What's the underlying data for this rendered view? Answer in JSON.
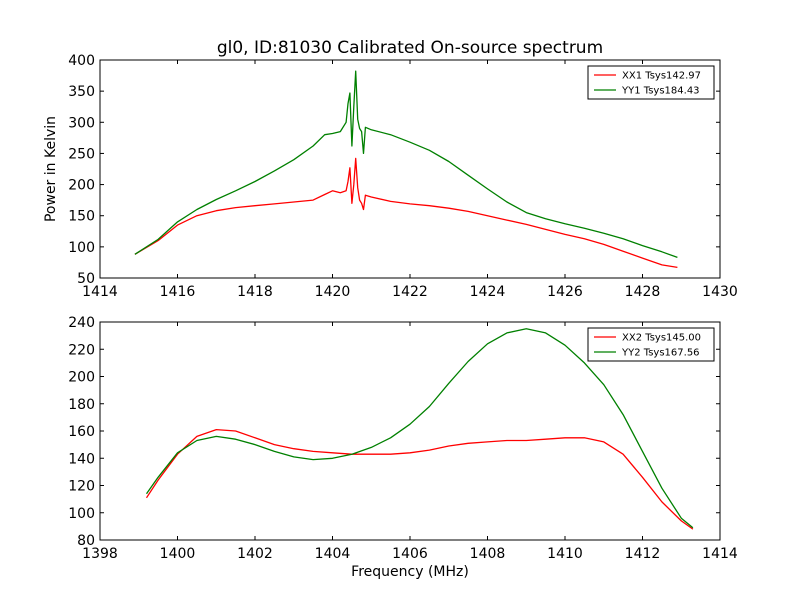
{
  "figure": {
    "title": "gl0, ID:81030 Calibrated On-source spectrum",
    "xlabel": "Frequency (MHz)",
    "ylabel_top": "Power in Kelvin"
  },
  "chart_data": [
    {
      "type": "line",
      "title": "gl0, ID:81030 Calibrated On-source spectrum",
      "xlabel": "",
      "ylabel": "Power in Kelvin",
      "xlim": [
        1414,
        1430
      ],
      "ylim": [
        50,
        400
      ],
      "xticks": [
        1414,
        1416,
        1418,
        1420,
        1422,
        1424,
        1426,
        1428,
        1430
      ],
      "yticks": [
        50,
        100,
        150,
        200,
        250,
        300,
        350,
        400
      ],
      "grid": false,
      "legend": "top-right",
      "series": [
        {
          "name": "XX1 Tsys142.97",
          "color": "#ff0000",
          "x": [
            1414.9,
            1415.5,
            1416.0,
            1416.5,
            1417.0,
            1417.5,
            1418.0,
            1418.5,
            1419.0,
            1419.5,
            1419.8,
            1420.0,
            1420.2,
            1420.35,
            1420.4,
            1420.45,
            1420.5,
            1420.55,
            1420.6,
            1420.65,
            1420.7,
            1420.75,
            1420.8,
            1420.85,
            1421.0,
            1421.5,
            1422.0,
            1422.5,
            1423.0,
            1423.5,
            1424.0,
            1424.5,
            1425.0,
            1425.5,
            1426.0,
            1426.5,
            1427.0,
            1427.5,
            1428.0,
            1428.5,
            1428.9
          ],
          "values": [
            88,
            110,
            135,
            150,
            158,
            163,
            166,
            169,
            172,
            175,
            184,
            190,
            187,
            190,
            205,
            227,
            170,
            200,
            242,
            195,
            175,
            170,
            160,
            183,
            180,
            173,
            169,
            166,
            162,
            157,
            150,
            143,
            136,
            128,
            120,
            113,
            104,
            93,
            82,
            71,
            67
          ]
        },
        {
          "name": "YY1 Tsys184.43",
          "color": "#008000",
          "x": [
            1414.9,
            1415.5,
            1416.0,
            1416.5,
            1417.0,
            1417.5,
            1418.0,
            1418.5,
            1419.0,
            1419.5,
            1419.8,
            1420.0,
            1420.2,
            1420.35,
            1420.4,
            1420.45,
            1420.5,
            1420.55,
            1420.6,
            1420.65,
            1420.7,
            1420.75,
            1420.8,
            1420.85,
            1421.0,
            1421.5,
            1422.0,
            1422.5,
            1423.0,
            1423.5,
            1424.0,
            1424.5,
            1425.0,
            1425.5,
            1426.0,
            1426.5,
            1427.0,
            1427.5,
            1428.0,
            1428.5,
            1428.9
          ],
          "values": [
            88,
            112,
            140,
            160,
            176,
            190,
            205,
            222,
            240,
            262,
            280,
            282,
            285,
            300,
            330,
            347,
            262,
            325,
            382,
            305,
            290,
            285,
            250,
            292,
            288,
            280,
            268,
            255,
            237,
            215,
            193,
            172,
            155,
            145,
            137,
            130,
            122,
            113,
            102,
            92,
            83
          ]
        }
      ]
    },
    {
      "type": "line",
      "title": "",
      "xlabel": "Frequency (MHz)",
      "ylabel": "",
      "xlim": [
        1398,
        1414
      ],
      "ylim": [
        80,
        240
      ],
      "xticks": [
        1398,
        1400,
        1402,
        1404,
        1406,
        1408,
        1410,
        1412,
        1414
      ],
      "yticks": [
        80,
        100,
        120,
        140,
        160,
        180,
        200,
        220,
        240
      ],
      "grid": false,
      "legend": "top-right",
      "series": [
        {
          "name": "XX2 Tsys145.00",
          "color": "#ff0000",
          "x": [
            1399.2,
            1399.5,
            1400.0,
            1400.5,
            1401.0,
            1401.5,
            1402.0,
            1402.5,
            1403.0,
            1403.5,
            1404.0,
            1404.5,
            1405.0,
            1405.5,
            1406.0,
            1406.5,
            1407.0,
            1407.5,
            1408.0,
            1408.5,
            1409.0,
            1409.5,
            1410.0,
            1410.5,
            1411.0,
            1411.5,
            1412.0,
            1412.5,
            1413.0,
            1413.3
          ],
          "values": [
            111,
            124,
            143,
            156,
            161,
            160,
            155,
            150,
            147,
            145,
            144,
            143,
            143,
            143,
            144,
            146,
            149,
            151,
            152,
            153,
            153,
            154,
            155,
            155,
            152,
            143,
            126,
            108,
            94,
            88
          ]
        },
        {
          "name": "YY2 Tsys167.56",
          "color": "#008000",
          "x": [
            1399.2,
            1399.5,
            1400.0,
            1400.5,
            1401.0,
            1401.5,
            1402.0,
            1402.5,
            1403.0,
            1403.5,
            1404.0,
            1404.5,
            1405.0,
            1405.5,
            1406.0,
            1406.5,
            1407.0,
            1407.5,
            1408.0,
            1408.5,
            1409.0,
            1409.5,
            1410.0,
            1410.5,
            1411.0,
            1411.5,
            1412.0,
            1412.5,
            1413.0,
            1413.3
          ],
          "values": [
            114,
            126,
            144,
            153,
            156,
            154,
            150,
            145,
            141,
            139,
            140,
            143,
            148,
            155,
            165,
            178,
            195,
            211,
            224,
            232,
            235,
            232,
            223,
            210,
            194,
            172,
            145,
            118,
            96,
            89
          ]
        }
      ]
    }
  ]
}
